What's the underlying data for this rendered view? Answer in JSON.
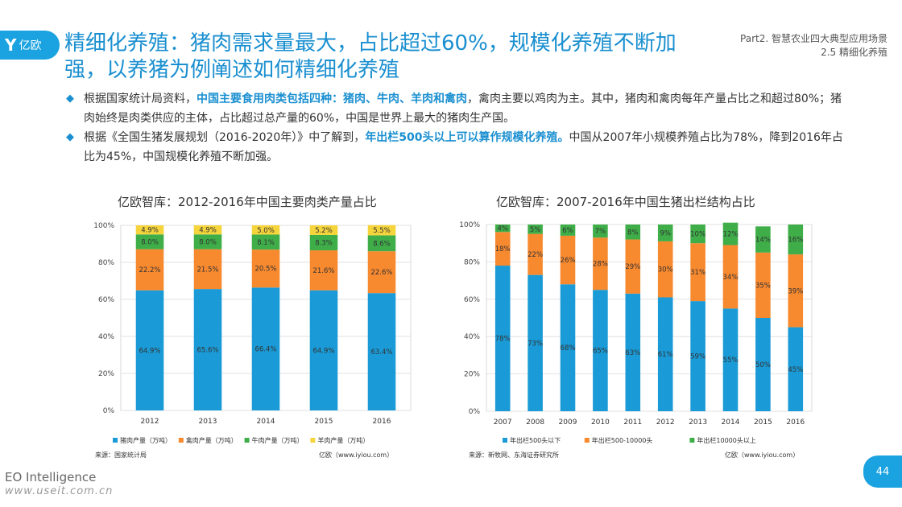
{
  "header": {
    "logo_mark": "Y",
    "logo_text": "亿欧",
    "title": "精细化养殖：猪肉需求量最大，占比超过60%，规模化养殖不断加强，以养猪为例阐述如何精细化养殖",
    "part_line1": "Part2. 智慧农业四大典型应用场景",
    "part_line2": "2.5 精细化养殖"
  },
  "bullets": [
    {
      "pre": "根据国家统计局资料，",
      "highlight": "中国主要食用肉类包括四种：猪肉、牛肉、羊肉和禽肉",
      "post": "，禽肉主要以鸡肉为主。其中，猪肉和禽肉每年产量占比之和超过80%；猪肉始终是肉类供应的主体，占比超过总产量的60%，中国是世界上最大的猪肉生产国。"
    },
    {
      "pre": "根据《全国生猪发展规划（2016-2020年）》中了解到，",
      "highlight": "年出栏500头以上可以算作规模化养殖。",
      "post": "中国从2007年小规模养殖占比为78%，降到2016年占比为45%，中国规模化养殖不断加强。"
    }
  ],
  "chart_data": [
    {
      "type": "bar",
      "stacked": true,
      "title": "亿欧智库：2012-2016年中国主要肉类产量占比",
      "categories": [
        "2012",
        "2013",
        "2014",
        "2015",
        "2016"
      ],
      "y_ticks": [
        "0%",
        "20%",
        "40%",
        "60%",
        "80%",
        "100%"
      ],
      "ylim": [
        0,
        100
      ],
      "series": [
        {
          "name": "猪肉产量（万吨）",
          "color": "#1a9ad6",
          "values": [
            64.9,
            65.6,
            66.4,
            64.9,
            63.4
          ],
          "labels": [
            "64.9%",
            "65.6%",
            "66.4%",
            "64.9%",
            "63.4%"
          ]
        },
        {
          "name": "禽肉产量（万吨）",
          "color": "#f7892f",
          "values": [
            22.2,
            21.5,
            20.5,
            21.6,
            22.6
          ],
          "labels": [
            "22.2%",
            "21.5%",
            "20.5%",
            "21.6%",
            "22.6%"
          ]
        },
        {
          "name": "牛肉产量（万吨）",
          "color": "#3fae49",
          "values": [
            8.0,
            8.0,
            8.1,
            8.3,
            8.6
          ],
          "labels": [
            "8.0%",
            "8.0%",
            "8.1%",
            "8.3%",
            "8.6%"
          ]
        },
        {
          "name": "羊肉产量（万吨）",
          "color": "#f5d43c",
          "values": [
            4.9,
            4.9,
            5.0,
            5.2,
            5.5
          ],
          "labels": [
            "4.9%",
            "4.9%",
            "5.0%",
            "5.2%",
            "5.5%"
          ]
        }
      ],
      "legend": "bottom",
      "source": "来源：国家统计局",
      "credit": "亿欧（www.iyiou.com）"
    },
    {
      "type": "bar",
      "stacked": true,
      "title": "亿欧智库：2007-2016年中国生猪出栏结构占比",
      "categories": [
        "2007",
        "2008",
        "2009",
        "2010",
        "2011",
        "2012",
        "2013",
        "2014",
        "2015",
        "2016"
      ],
      "y_ticks": [
        "0%",
        "20%",
        "40%",
        "60%",
        "80%",
        "100%"
      ],
      "ylim": [
        0,
        100
      ],
      "series": [
        {
          "name": "年出栏500头以下",
          "color": "#1a9ad6",
          "values": [
            78,
            73,
            68,
            65,
            63,
            61,
            59,
            55,
            50,
            45
          ],
          "labels": [
            "78%",
            "73%",
            "68%",
            "65%",
            "63%",
            "61%",
            "59%",
            "55%",
            "50%",
            "45%"
          ]
        },
        {
          "name": "年出栏500-10000头",
          "color": "#f7892f",
          "values": [
            18,
            22,
            26,
            28,
            29,
            30,
            31,
            34,
            35,
            39
          ],
          "labels": [
            "18%",
            "22%",
            "26%",
            "28%",
            "29%",
            "30%",
            "31%",
            "34%",
            "35%",
            "39%"
          ]
        },
        {
          "name": "年出栏10000头以上",
          "color": "#3fae49",
          "values": [
            4,
            5,
            6,
            7,
            8,
            9,
            10,
            12,
            14,
            16
          ],
          "labels": [
            "4%",
            "5%",
            "6%",
            "7%",
            "8%",
            "9%",
            "10%",
            "12%",
            "14%",
            "16%"
          ]
        }
      ],
      "legend": "bottom",
      "source": "来源：新牧网、东海证券研究所",
      "credit": "亿欧（www.iyiou.com）"
    }
  ],
  "footer": {
    "brand": "EO Intelligence",
    "url": "www.useit.com.cn",
    "page": "44"
  }
}
